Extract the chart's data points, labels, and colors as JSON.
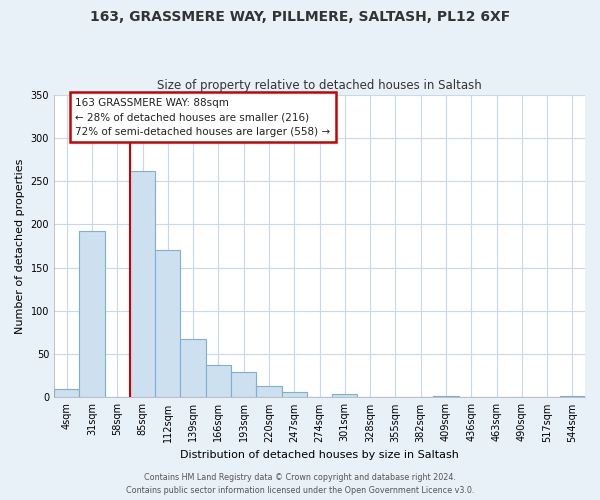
{
  "title": "163, GRASSMERE WAY, PILLMERE, SALTASH, PL12 6XF",
  "subtitle": "Size of property relative to detached houses in Saltash",
  "xlabel": "Distribution of detached houses by size in Saltash",
  "ylabel": "Number of detached properties",
  "bar_color": "#cce0f0",
  "bar_edge_color": "#7bafd4",
  "bin_labels": [
    "4sqm",
    "31sqm",
    "58sqm",
    "85sqm",
    "112sqm",
    "139sqm",
    "166sqm",
    "193sqm",
    "220sqm",
    "247sqm",
    "274sqm",
    "301sqm",
    "328sqm",
    "355sqm",
    "382sqm",
    "409sqm",
    "436sqm",
    "463sqm",
    "490sqm",
    "517sqm",
    "544sqm"
  ],
  "bar_heights": [
    10,
    192,
    0,
    262,
    170,
    67,
    37,
    29,
    13,
    6,
    0,
    4,
    0,
    0,
    0,
    2,
    0,
    0,
    0,
    0,
    2
  ],
  "ylim": [
    0,
    350
  ],
  "yticks": [
    0,
    50,
    100,
    150,
    200,
    250,
    300,
    350
  ],
  "vline_index": 3,
  "annotation_line1": "163 GRASSMERE WAY: 88sqm",
  "annotation_line2": "← 28% of detached houses are smaller (216)",
  "annotation_line3": "72% of semi-detached houses are larger (558) →",
  "annotation_box_color": "#ffffff",
  "annotation_box_edge": "#cc0000",
  "vline_color": "#cc0000",
  "footer_line1": "Contains HM Land Registry data © Crown copyright and database right 2024.",
  "footer_line2": "Contains public sector information licensed under the Open Government Licence v3.0.",
  "background_color": "#e8f0f8",
  "plot_bg_color": "#ffffff",
  "grid_color": "#c8d8e8"
}
